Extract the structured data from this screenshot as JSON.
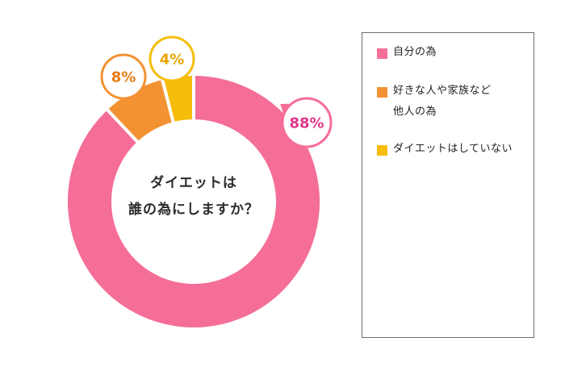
{
  "chart_data": {
    "type": "pie",
    "center_text": [
      "ダイエットは",
      "誰の為にしますか？"
    ],
    "slices": [
      {
        "label": "自分の為",
        "value": 88,
        "display": "88%",
        "color": "#f56e97"
      },
      {
        "label": "好きな人や家族など\n他人の為",
        "value": 8,
        "display": "8%",
        "color": "#f39233"
      },
      {
        "label": "ダイエットはしていない",
        "value": 4,
        "display": "4%",
        "color": "#f6bd0b"
      }
    ],
    "legend_position": "right"
  }
}
